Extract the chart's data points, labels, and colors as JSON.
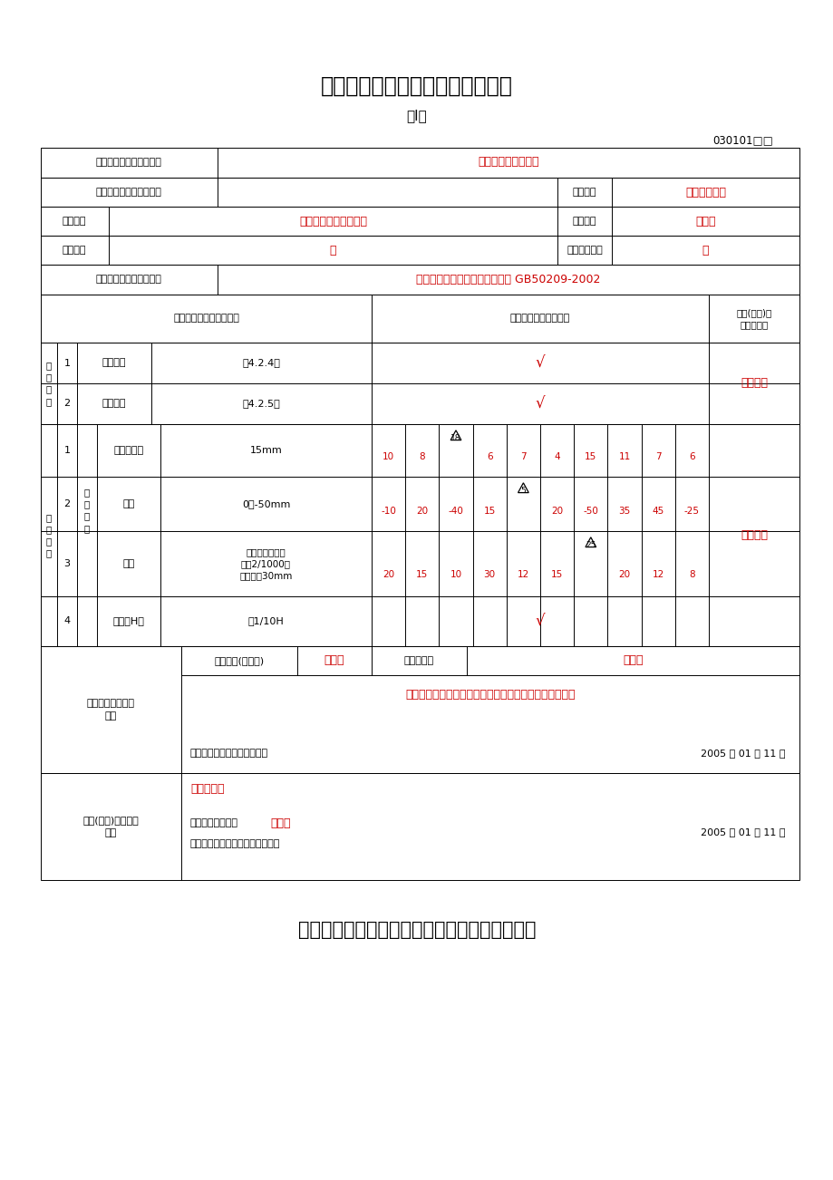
{
  "title1": "基土垫层工程检验批质量验收记录",
  "title2": "（I）",
  "form_number": "030101□□",
  "title_bottom": "砂垫层和砂石工程垫层工程检验批质量验收记录",
  "bg_color": "#ffffff",
  "red_color": "#cc0000",
  "black": "#000000",
  "gray_line": "#888888"
}
